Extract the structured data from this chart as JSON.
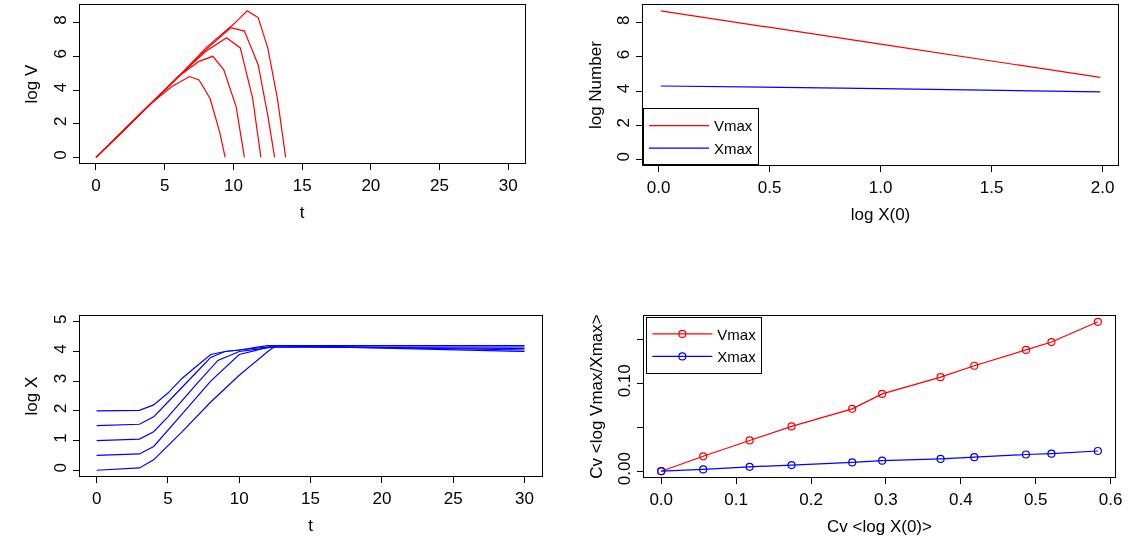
{
  "chart_data": [
    {
      "type": "line",
      "xlabel": "t",
      "ylabel": "log V",
      "xlim": [
        -1.2,
        31.2
      ],
      "ylim": [
        -0.35,
        9.05
      ],
      "xticks": [
        0,
        5,
        10,
        15,
        20,
        25,
        30
      ],
      "yticks": [
        0,
        2,
        4,
        6,
        8
      ],
      "legend": false,
      "marker": "none",
      "line_style": "solid",
      "series": [
        {
          "color": "#ff0000",
          "x": [
            0,
            2,
            4,
            5.5,
            6.8,
            7.5,
            8.3,
            9,
            9.4
          ],
          "values": [
            0,
            1.6,
            3.2,
            4.2,
            4.8,
            4.6,
            3.5,
            1.5,
            0
          ]
        },
        {
          "color": "#ff0000",
          "x": [
            0,
            2,
            4,
            6,
            7.5,
            8.5,
            9.3,
            10.2,
            10.8
          ],
          "values": [
            0,
            1.6,
            3.2,
            4.8,
            5.7,
            6,
            5.2,
            3,
            0
          ]
        },
        {
          "color": "#ff0000",
          "x": [
            0,
            2,
            4,
            6,
            8,
            9.5,
            10.5,
            11.4,
            12
          ],
          "values": [
            0,
            1.6,
            3.2,
            4.8,
            6.3,
            7.1,
            6.5,
            3.5,
            0
          ]
        },
        {
          "color": "#ff0000",
          "x": [
            0,
            2,
            4,
            6,
            8,
            9.8,
            10.8,
            11.8,
            12.5,
            13
          ],
          "values": [
            0,
            1.6,
            3.2,
            4.8,
            6.4,
            7.7,
            7.5,
            5.5,
            2.5,
            0
          ]
        },
        {
          "color": "#ff0000",
          "x": [
            0,
            2,
            4,
            6,
            8,
            10,
            11,
            11.8,
            12.5,
            13.2,
            13.8
          ],
          "values": [
            0,
            1.6,
            3.2,
            4.8,
            6.5,
            7.9,
            8.7,
            8.3,
            6.5,
            3.5,
            0
          ]
        }
      ]
    },
    {
      "type": "line",
      "xlabel": "log X(0)",
      "ylabel": "log Number",
      "xlim": [
        -0.07,
        2.07
      ],
      "ylim": [
        -0.35,
        9.05
      ],
      "xticks": [
        {
          "value": 0,
          "label": "0.0"
        },
        {
          "value": 0.5,
          "label": "0.5"
        },
        {
          "value": 1,
          "label": "1.0"
        },
        {
          "value": 1.5,
          "label": "1.5"
        },
        {
          "value": 2,
          "label": "2.0"
        }
      ],
      "yticks": [
        0,
        2,
        4,
        6,
        8
      ],
      "legend": "bottom left",
      "marker": "none",
      "line_style": "solid",
      "series": [
        {
          "name": "Vmax",
          "color": "#ff0000",
          "x": [
            0.01,
            1,
            1.99
          ],
          "values": [
            8.7,
            6.75,
            4.8
          ]
        },
        {
          "name": "Xmax",
          "color": "#0000ff",
          "x": [
            0.01,
            1,
            1.99
          ],
          "values": [
            4.3,
            4.15,
            3.95
          ]
        }
      ]
    },
    {
      "type": "line",
      "xlabel": "t",
      "ylabel": "log X",
      "xlim": [
        -1.2,
        31.2
      ],
      "ylim": [
        -0.2,
        5.2
      ],
      "xticks": [
        0,
        5,
        10,
        15,
        20,
        25,
        30
      ],
      "yticks": [
        0,
        1,
        2,
        3,
        4,
        5
      ],
      "legend": false,
      "marker": "none",
      "line_style": "solid",
      "series": [
        {
          "color": "#0000ff",
          "x": [
            0,
            3,
            4,
            5,
            6,
            7,
            8,
            9,
            10,
            12,
            30
          ],
          "values": [
            2,
            2.02,
            2.2,
            2.6,
            3.1,
            3.5,
            3.9,
            4.0,
            4.05,
            4.2,
            4.2
          ]
        },
        {
          "color": "#0000ff",
          "x": [
            0,
            3,
            4,
            5,
            7,
            8,
            9,
            12,
            30
          ],
          "values": [
            1.5,
            1.55,
            1.8,
            2.3,
            3.3,
            3.8,
            4.0,
            4.15,
            4.15
          ]
        },
        {
          "color": "#0000ff",
          "x": [
            0,
            3,
            4,
            5,
            7,
            8.5,
            10,
            12.5,
            30
          ],
          "values": [
            1,
            1.05,
            1.3,
            1.8,
            2.9,
            3.7,
            4.0,
            4.15,
            4.1
          ]
        },
        {
          "color": "#0000ff",
          "x": [
            0,
            3,
            4,
            6,
            8,
            10,
            12.5,
            30
          ],
          "values": [
            0.5,
            0.55,
            0.8,
            1.9,
            3.0,
            3.9,
            4.2,
            4.05
          ]
        },
        {
          "color": "#0000ff",
          "x": [
            0,
            3,
            4,
            6,
            8,
            10,
            12,
            12.6,
            30
          ],
          "values": [
            0,
            0.08,
            0.35,
            1.3,
            2.3,
            3.2,
            4.0,
            4.2,
            4.0
          ]
        }
      ]
    },
    {
      "type": "line",
      "xlabel": "Cv <log X(0)>",
      "ylabel": "Cv <log Vmax/Xmax>",
      "xlim": [
        -0.023,
        0.606
      ],
      "ylim": [
        -0.0068,
        0.1768
      ],
      "xticks": [
        {
          "value": 0,
          "label": "0.0"
        },
        {
          "value": 0.1,
          "label": "0.1"
        },
        {
          "value": 0.2,
          "label": "0.2"
        },
        {
          "value": 0.3,
          "label": "0.3"
        },
        {
          "value": 0.4,
          "label": "0.4"
        },
        {
          "value": 0.5,
          "label": "0.5"
        },
        {
          "value": 0.6,
          "label": "0.6"
        }
      ],
      "yticks": [
        {
          "value": 0,
          "label": "0.00"
        },
        {
          "value": 0.05,
          "label": null
        },
        {
          "value": 0.1,
          "label": "0.10"
        },
        {
          "value": 0.15,
          "label": null
        }
      ],
      "legend": "top left",
      "marker": "circle",
      "line_style": "solid",
      "x": [
        0,
        0.056,
        0.118,
        0.174,
        0.255,
        0.295,
        0.373,
        0.418,
        0.487,
        0.521,
        0.583
      ],
      "series": [
        {
          "name": "Vmax",
          "color": "#ff0000",
          "values": [
            0,
            0.017,
            0.035,
            0.051,
            0.071,
            0.088,
            0.107,
            0.12,
            0.138,
            0.147,
            0.17
          ]
        },
        {
          "name": "Xmax",
          "color": "#0000ff",
          "values": [
            0,
            0.002,
            0.005,
            0.007,
            0.01,
            0.012,
            0.014,
            0.016,
            0.019,
            0.02,
            0.023
          ]
        }
      ]
    }
  ]
}
